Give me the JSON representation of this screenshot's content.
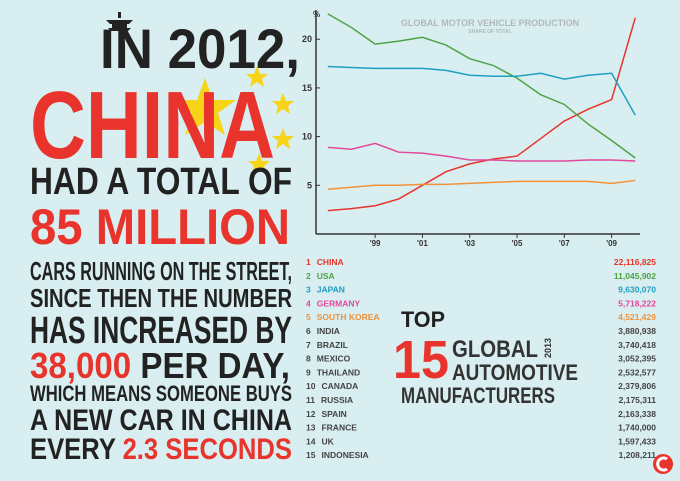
{
  "chart_data": {
    "type": "line",
    "title": "GLOBAL MOTOR VEHICLE PRODUCTION",
    "subtitle": "SHARE OF TOTAL",
    "y_label": "%",
    "x": [
      1997,
      1998,
      1999,
      2000,
      2001,
      2002,
      2003,
      2004,
      2005,
      2006,
      2007,
      2008,
      2009,
      2010
    ],
    "series": [
      {
        "name": "CHINA",
        "color": "#e8342c",
        "values": [
          2.4,
          2.6,
          2.9,
          3.6,
          5.0,
          6.4,
          7.2,
          7.7,
          8.0,
          9.8,
          11.6,
          12.8,
          13.8,
          22.2
        ]
      },
      {
        "name": "USA",
        "color": "#4ea346",
        "values": [
          22.6,
          21.2,
          19.5,
          19.8,
          20.2,
          19.4,
          18.0,
          17.3,
          16.0,
          14.3,
          13.3,
          11.3,
          9.6,
          7.8
        ]
      },
      {
        "name": "JAPAN",
        "color": "#1d9fc4",
        "values": [
          17.2,
          17.1,
          17.0,
          17.0,
          17.0,
          16.8,
          16.3,
          16.2,
          16.2,
          16.5,
          15.9,
          16.3,
          16.5,
          12.2
        ]
      },
      {
        "name": "GERMANY",
        "color": "#e0499b",
        "values": [
          8.9,
          8.7,
          9.3,
          8.4,
          8.3,
          8.0,
          7.6,
          7.6,
          7.5,
          7.5,
          7.5,
          7.6,
          7.6,
          7.5
        ]
      },
      {
        "name": "SOUTH KOREA",
        "color": "#f0923a",
        "values": [
          4.6,
          4.8,
          5.0,
          5.0,
          5.1,
          5.1,
          5.2,
          5.3,
          5.4,
          5.4,
          5.4,
          5.4,
          5.2,
          5.5
        ]
      }
    ],
    "xlim": [
      1996.5,
      2010.2
    ],
    "xticks": [
      {
        "value": 1999,
        "label": "'99"
      },
      {
        "value": 2001,
        "label": "'01"
      },
      {
        "value": 2003,
        "label": "'03"
      },
      {
        "value": 2005,
        "label": "'05"
      },
      {
        "value": 2007,
        "label": "'07"
      },
      {
        "value": 2009,
        "label": "'09"
      }
    ],
    "ylim": [
      0,
      23
    ],
    "yticks": [
      5,
      10,
      15,
      20
    ]
  },
  "headline": {
    "lines": [
      [
        {
          "text": "IN 2012,",
          "color": "#222222"
        }
      ],
      [
        {
          "text": "CHINA",
          "color": "#e8342c"
        }
      ],
      [
        {
          "text": "HAD A TOTAL OF",
          "color": "#222222"
        }
      ],
      [
        {
          "text": "85 MILLION",
          "color": "#e8342c"
        }
      ],
      [
        {
          "text": "CARS RUNNING ON THE STREET,",
          "color": "#222222"
        }
      ],
      [
        {
          "text": "SINCE THEN THE NUMBER",
          "color": "#222222"
        }
      ],
      [
        {
          "text": "HAS INCREASED BY",
          "color": "#222222"
        }
      ],
      [
        {
          "text": "38,000",
          "color": "#e8342c"
        },
        {
          "text": " PER DAY,",
          "color": "#222222"
        }
      ],
      [
        {
          "text": "WHICH MEANS SOMEONE BUYS",
          "color": "#222222"
        }
      ],
      [
        {
          "text": "A NEW CAR IN CHINA",
          "color": "#222222"
        }
      ],
      [
        {
          "text": "EVERY ",
          "color": "#222222"
        },
        {
          "text": "2.3 SECONDS",
          "color": "#e8342c"
        }
      ]
    ]
  },
  "ranking": {
    "top": "TOP",
    "number": "15",
    "year": "2013",
    "words": [
      "GLOBAL",
      "AUTOMOTIVE",
      "MANUFACTURERS"
    ],
    "rows": [
      {
        "rank": 1,
        "country": "CHINA",
        "value": "22,116,825",
        "color": "#e8342c"
      },
      {
        "rank": 2,
        "country": "USA",
        "value": "11,045,902",
        "color": "#4ea346"
      },
      {
        "rank": 3,
        "country": "JAPAN",
        "value": "9,630,070",
        "color": "#1d9fc4"
      },
      {
        "rank": 4,
        "country": "GERMANY",
        "value": "5,718,222",
        "color": "#e0499b"
      },
      {
        "rank": 5,
        "country": "SOUTH KOREA",
        "value": "4,521,429",
        "color": "#f0923a"
      },
      {
        "rank": 6,
        "country": "INDIA",
        "value": "3,880,938",
        "color": "#444444"
      },
      {
        "rank": 7,
        "country": "BRAZIL",
        "value": "3,740,418",
        "color": "#444444"
      },
      {
        "rank": 8,
        "country": "MEXICO",
        "value": "3,052,395",
        "color": "#444444"
      },
      {
        "rank": 9,
        "country": "THAILAND",
        "value": "2,532,577",
        "color": "#444444"
      },
      {
        "rank": 10,
        "country": "CANADA",
        "value": "2,379,806",
        "color": "#444444"
      },
      {
        "rank": 11,
        "country": "RUSSIA",
        "value": "2,175,311",
        "color": "#444444"
      },
      {
        "rank": 12,
        "country": "SPAIN",
        "value": "2,163,338",
        "color": "#444444"
      },
      {
        "rank": 13,
        "country": "FRANCE",
        "value": "1,740,000",
        "color": "#444444"
      },
      {
        "rank": 14,
        "country": "UK",
        "value": "1,597,433",
        "color": "#444444"
      },
      {
        "rank": 15,
        "country": "INDONESIA",
        "value": "1,208,211",
        "color": "#444444"
      }
    ]
  }
}
